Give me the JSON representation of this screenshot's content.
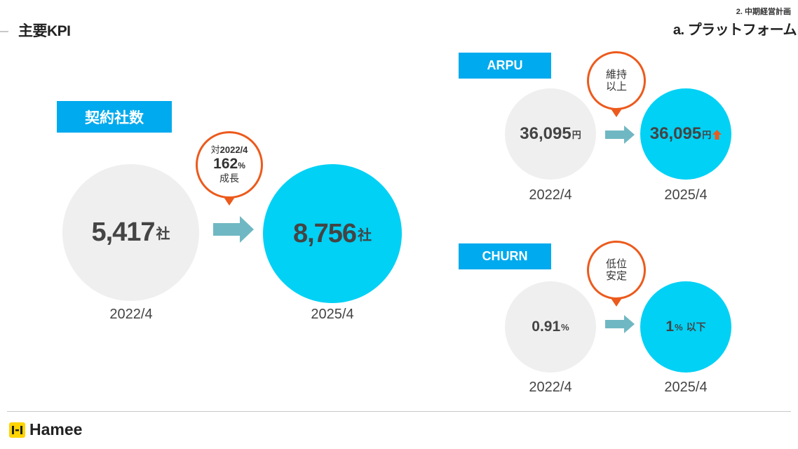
{
  "header": {
    "title": "主要KPI",
    "crumb_section": "2. 中期経営計画",
    "crumb_sub": "a. プラットフォーム"
  },
  "contracts": {
    "label": "契約社数",
    "before": {
      "value": "5,417",
      "unit": "社",
      "year": "2022/4"
    },
    "after": {
      "value": "8,756",
      "unit": "社",
      "year": "2025/4"
    },
    "callout": {
      "line1_prefix": "対",
      "line1_value": "2022/4",
      "line2_value": "162",
      "line2_unit": "%",
      "line3": "成長"
    }
  },
  "arpu": {
    "label": "ARPU",
    "before": {
      "value": "36,095",
      "unit": "円",
      "year": "2022/4"
    },
    "after": {
      "value": "36,095",
      "unit": "円",
      "year": "2025/4"
    },
    "callout": {
      "line1": "維持",
      "line2": "以上"
    }
  },
  "churn": {
    "label": "CHURN",
    "before": {
      "value": "0.91",
      "unit": "%",
      "year": "2022/4"
    },
    "after": {
      "value": "1",
      "unit": "%",
      "suffix": "以下",
      "year": "2025/4"
    },
    "callout": {
      "line1": "低位",
      "line2": "安定"
    }
  },
  "footer": {
    "brand": "Hamee"
  },
  "colors": {
    "label_blue": "#00aaee",
    "circle_cyan": "#00d1f5",
    "circle_gray": "#efefef",
    "callout_orange": "#ec5a1c",
    "arrow_teal": "#6fb8c3",
    "logo_yellow": "#ffd400"
  },
  "icons": [
    "arrow-right-icon",
    "up-arrow-icon",
    "hamee-logo-icon"
  ]
}
